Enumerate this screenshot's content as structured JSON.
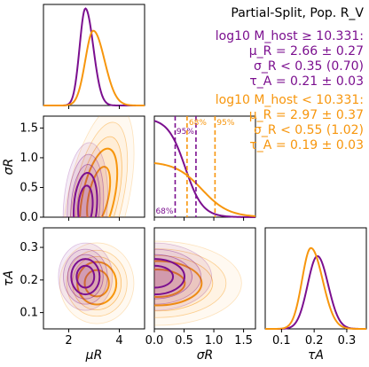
{
  "colors": {
    "high_mass": "#7b0f8f",
    "low_mass": "#f7960d"
  },
  "info": {
    "title": "Partial-Split, Pop. R_V",
    "high": [
      "log10 M_host ≥ 10.331:",
      "μ_R = 2.66 ± 0.27",
      "σ_R < 0.35 (0.70)",
      "τ_A = 0.21 ± 0.03"
    ],
    "low": [
      "log10 M_host < 10.331:",
      "μ_R = 2.97 ± 0.37",
      "σ_R < 0.55 (1.02)",
      "τ_A = 0.19 ± 0.03"
    ]
  },
  "chart_data": {
    "type": "corner",
    "parameters": [
      "μ_R",
      "σ_R",
      "τ_A"
    ],
    "axis_labels": {
      "mu_R": "μR",
      "sigma_R": "σR",
      "tau_A": "τA"
    },
    "ranges": {
      "mu_R": [
        1.0,
        5.0
      ],
      "sigma_R": [
        0.0,
        1.7
      ],
      "tau_A": [
        0.05,
        0.36
      ]
    },
    "ticks": {
      "mu_R": [
        "2",
        "4"
      ],
      "sigma_R": [
        "0.0",
        "0.5",
        "1.0",
        "1.5"
      ],
      "tau_A": [
        "0.1",
        "0.2",
        "0.3"
      ]
    },
    "series": [
      {
        "name": "log10 M_host ≥ 10.331",
        "color": "#7b0f8f",
        "mu_R": 2.66,
        "mu_R_err": 0.27,
        "sigma_R_upper": 0.35,
        "sigma_R_upper95": 0.7,
        "tau_A": 0.21,
        "tau_A_err": 0.03
      },
      {
        "name": "log10 M_host < 10.331",
        "color": "#f7960d",
        "mu_R": 2.97,
        "mu_R_err": 0.37,
        "sigma_R_upper": 0.55,
        "sigma_R_upper95": 1.02,
        "tau_A": 0.19,
        "tau_A_err": 0.03
      }
    ],
    "sigma_limit_labels": {
      "high_68": "68%",
      "high_95": "95%",
      "low_68": "68%",
      "low_95": "95%"
    }
  }
}
